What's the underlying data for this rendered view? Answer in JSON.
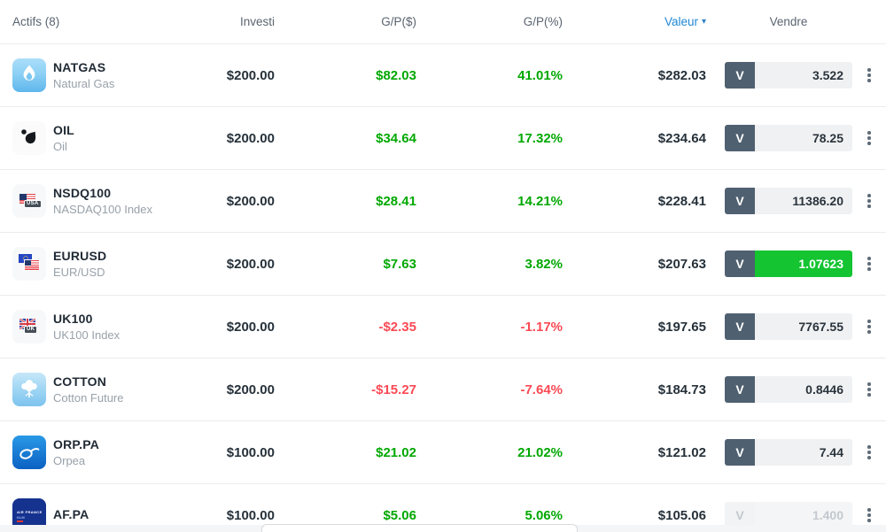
{
  "colors": {
    "gain": "#02a802",
    "loss": "#fb4a55",
    "accent_blue": "#1e87d5",
    "accent_blue_dark": "#2b7fc9",
    "sell_button_bg": "#4f6070",
    "rate_flash_bg": "#14c431"
  },
  "header": {
    "assets_label": "Actifs (8)",
    "invested_label": "Investi",
    "gp_dollar_label": "G/P($)",
    "gp_percent_label": "G/P(%)",
    "value_label": "Valeur",
    "sell_label": "Vendre",
    "sorted_by": "Valeur",
    "sort_caret": "▾"
  },
  "rows": [
    {
      "symbol": "NATGAS",
      "name": "Natural Gas",
      "icon": "natural-gas-flame",
      "icon_badge": "",
      "invested": "$200.00",
      "gp_dollar": "$82.03",
      "gp_percent": "41.01%",
      "trend": "up",
      "value": "$282.03",
      "sell_button": "V",
      "sell_rate": "3.522",
      "rate_highlight": false,
      "disabled": false
    },
    {
      "symbol": "OIL",
      "name": "Oil",
      "icon": "oil-drop",
      "icon_badge": "",
      "invested": "$200.00",
      "gp_dollar": "$34.64",
      "gp_percent": "17.32%",
      "trend": "up",
      "value": "$234.64",
      "sell_button": "V",
      "sell_rate": "78.25",
      "rate_highlight": false,
      "disabled": false
    },
    {
      "symbol": "NSDQ100",
      "name": "NASDAQ100 Index",
      "icon": "usa-flag",
      "icon_badge": "USA",
      "invested": "$200.00",
      "gp_dollar": "$28.41",
      "gp_percent": "14.21%",
      "trend": "up",
      "value": "$228.41",
      "sell_button": "V",
      "sell_rate": "11386.20",
      "rate_highlight": false,
      "disabled": false
    },
    {
      "symbol": "EURUSD",
      "name": "EUR/USD",
      "icon": "eur-usd-flags",
      "icon_badge": "",
      "invested": "$200.00",
      "gp_dollar": "$7.63",
      "gp_percent": "3.82%",
      "trend": "up",
      "value": "$207.63",
      "sell_button": "V",
      "sell_rate": "1.07623",
      "rate_highlight": true,
      "disabled": false
    },
    {
      "symbol": "UK100",
      "name": "UK100 Index",
      "icon": "uk-flag",
      "icon_badge": "UK",
      "invested": "$200.00",
      "gp_dollar": "-$2.35",
      "gp_percent": "-1.17%",
      "trend": "down",
      "value": "$197.65",
      "sell_button": "V",
      "sell_rate": "7767.55",
      "rate_highlight": false,
      "disabled": false
    },
    {
      "symbol": "COTTON",
      "name": "Cotton Future",
      "icon": "cotton-plant",
      "icon_badge": "",
      "invested": "$200.00",
      "gp_dollar": "-$15.27",
      "gp_percent": "-7.64%",
      "trend": "down",
      "value": "$184.73",
      "sell_button": "V",
      "sell_rate": "0.8446",
      "rate_highlight": false,
      "disabled": false
    },
    {
      "symbol": "ORP.PA",
      "name": "Orpea",
      "icon": "orpea-logo",
      "icon_badge": "",
      "invested": "$100.00",
      "gp_dollar": "$21.02",
      "gp_percent": "21.02%",
      "trend": "up",
      "value": "$121.02",
      "sell_button": "V",
      "sell_rate": "7.44",
      "rate_highlight": false,
      "disabled": false
    },
    {
      "symbol": "AF.PA",
      "name": "",
      "icon": "air-france-logo",
      "icon_badge": "",
      "invested": "$100.00",
      "gp_dollar": "$5.06",
      "gp_percent": "5.06%",
      "trend": "up",
      "value": "$105.06",
      "sell_button": "V",
      "sell_rate": "1.400",
      "rate_highlight": false,
      "disabled": true
    }
  ]
}
